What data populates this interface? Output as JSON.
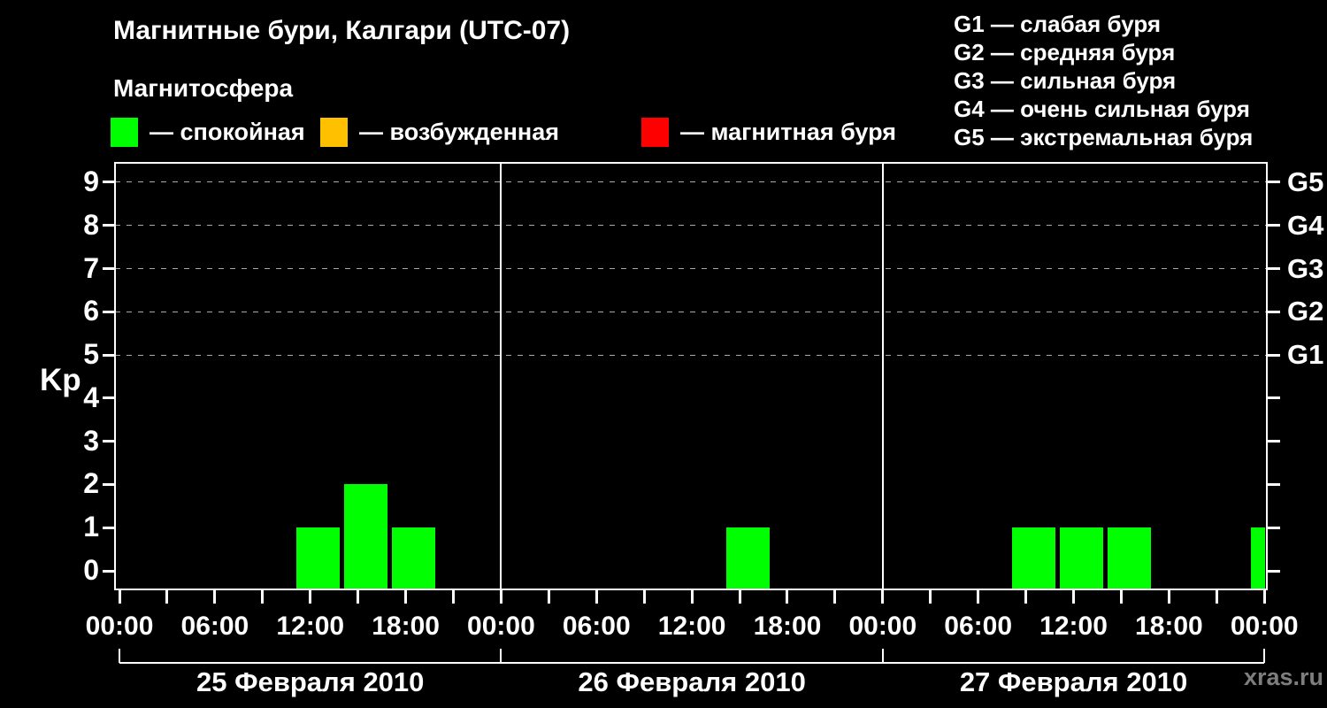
{
  "title": "Магнитные бури, Калгари (UTC-07)",
  "subtitle": "Магнитосфера",
  "legend": {
    "items": [
      {
        "key": "quiet",
        "label": "— спокойная",
        "color": "#00ff00"
      },
      {
        "key": "active",
        "label": "— возбужденная",
        "color": "#ffc000"
      },
      {
        "key": "storm",
        "label": "— магнитная буря",
        "color": "#ff0000"
      }
    ]
  },
  "storm_scale_legend": {
    "items": [
      {
        "code": "G1",
        "label": "G1 — слабая буря"
      },
      {
        "code": "G2",
        "label": "G2 — средняя буря"
      },
      {
        "code": "G3",
        "label": "G3 — сильная буря"
      },
      {
        "code": "G4",
        "label": "G4 — очень сильная буря"
      },
      {
        "code": "G5",
        "label": "G5 — экстремальная буря"
      }
    ]
  },
  "watermark": "xras.ru",
  "chart_data": {
    "type": "bar",
    "title": "Магнитные бури, Калгари (UTC-07)",
    "ylabel": "Kp",
    "ylim": [
      -0.45,
      9.45
    ],
    "xlim_hours": [
      -0.28,
      72.21
    ],
    "y_ticks": [
      0,
      1,
      2,
      3,
      4,
      5,
      6,
      7,
      8,
      9
    ],
    "grid_values": [
      5,
      6,
      7,
      8,
      9
    ],
    "grid_on": true,
    "day_boundaries_hours": [
      24,
      48
    ],
    "x_tick_step_hours": 3,
    "x_labels": [
      {
        "hour": 0,
        "label": "00:00"
      },
      {
        "hour": 6,
        "label": "06:00"
      },
      {
        "hour": 12,
        "label": "12:00"
      },
      {
        "hour": 18,
        "label": "18:00"
      },
      {
        "hour": 24,
        "label": "00:00"
      },
      {
        "hour": 30,
        "label": "06:00"
      },
      {
        "hour": 36,
        "label": "12:00"
      },
      {
        "hour": 42,
        "label": "18:00"
      },
      {
        "hour": 48,
        "label": "00:00"
      },
      {
        "hour": 54,
        "label": "06:00"
      },
      {
        "hour": 60,
        "label": "12:00"
      },
      {
        "hour": 66,
        "label": "18:00"
      },
      {
        "hour": 72,
        "label": "00:00"
      }
    ],
    "days": [
      {
        "label": "25 Февраля 2010",
        "start_hour": 0,
        "end_hour": 24
      },
      {
        "label": "26 Февраля 2010",
        "start_hour": 24,
        "end_hour": 48
      },
      {
        "label": "27 Февраля 2010",
        "start_hour": 48,
        "end_hour": 72
      }
    ],
    "right_axis": {
      "tick_values": [
        0,
        1,
        2,
        3,
        4,
        5,
        6,
        7,
        8,
        9
      ],
      "labels": [
        {
          "value": 5,
          "label": "G1"
        },
        {
          "value": 6,
          "label": "G2"
        },
        {
          "value": 7,
          "label": "G3"
        },
        {
          "value": 8,
          "label": "G4"
        },
        {
          "value": 9,
          "label": "G5"
        }
      ]
    },
    "bars": [
      {
        "start_hour": 11,
        "end_hour": 14,
        "kp": 1,
        "status": "спокойная",
        "color": "#00ff00"
      },
      {
        "start_hour": 14,
        "end_hour": 17,
        "kp": 2,
        "status": "спокойная",
        "color": "#00ff00"
      },
      {
        "start_hour": 17,
        "end_hour": 20,
        "kp": 1,
        "status": "спокойная",
        "color": "#00ff00"
      },
      {
        "start_hour": 38,
        "end_hour": 41,
        "kp": 1,
        "status": "спокойная",
        "color": "#00ff00"
      },
      {
        "start_hour": 56,
        "end_hour": 59,
        "kp": 1,
        "status": "спокойная",
        "color": "#00ff00"
      },
      {
        "start_hour": 59,
        "end_hour": 62,
        "kp": 1,
        "status": "спокойная",
        "color": "#00ff00"
      },
      {
        "start_hour": 62,
        "end_hour": 65,
        "kp": 1,
        "status": "спокойная",
        "color": "#00ff00"
      },
      {
        "start_hour": 71,
        "end_hour": 74,
        "kp": 1,
        "status": "спокойная",
        "color": "#00ff00"
      }
    ]
  }
}
